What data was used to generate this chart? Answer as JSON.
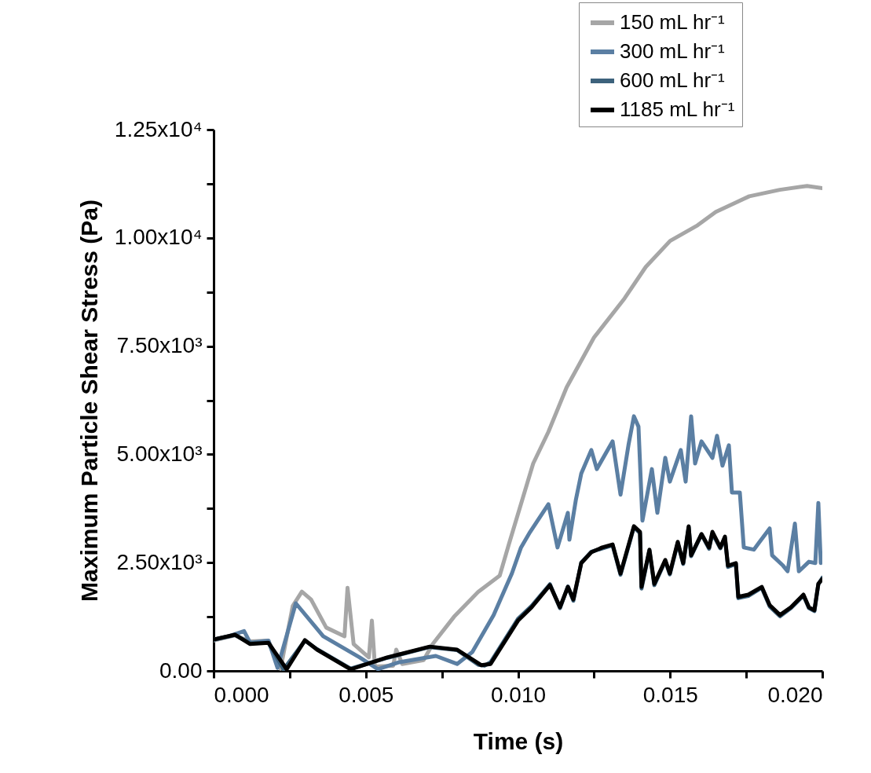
{
  "chart_data": {
    "type": "line",
    "xlabel": "Time (s)",
    "ylabel": "Maximum Particle Shear Stress (Pa)",
    "xlim": [
      0,
      0.02
    ],
    "ylim": [
      0,
      12500
    ],
    "xticks": [
      {
        "value": 0,
        "label": "0.000"
      },
      {
        "value": 0.0025,
        "label": null
      },
      {
        "value": 0.005,
        "label": "0.005"
      },
      {
        "value": 0.0075,
        "label": null
      },
      {
        "value": 0.01,
        "label": "0.010"
      },
      {
        "value": 0.0125,
        "label": null
      },
      {
        "value": 0.015,
        "label": "0.015"
      },
      {
        "value": 0.0175,
        "label": null
      },
      {
        "value": 0.02,
        "label": "0.020"
      }
    ],
    "yticks": [
      {
        "value": 0,
        "label": "0.00"
      },
      {
        "value": 1250,
        "label": null
      },
      {
        "value": 2500,
        "label": "2.50x10³"
      },
      {
        "value": 3750,
        "label": null
      },
      {
        "value": 5000,
        "label": "5.00x10³"
      },
      {
        "value": 6250,
        "label": null
      },
      {
        "value": 7500,
        "label": "7.50x10³"
      },
      {
        "value": 8750,
        "label": null
      },
      {
        "value": 10000,
        "label": "1.00x10⁴"
      },
      {
        "value": 11250,
        "label": null
      },
      {
        "value": 12500,
        "label": "1.25x10⁴"
      }
    ],
    "grid": false,
    "legend": "top right",
    "line_style": "solid",
    "marker": "none",
    "series": [
      {
        "name": "150 mL hr⁻¹",
        "color": "#a6a6a6",
        "x": [
          0,
          0.0007,
          0.0012,
          0.0018,
          0.0022,
          0.0026,
          0.0029,
          0.0032,
          0.0037,
          0.0043,
          0.0044,
          0.0046,
          0.0051,
          0.0052,
          0.0053,
          0.0059,
          0.006,
          0.0062,
          0.0069,
          0.0072,
          0.0079,
          0.0087,
          0.0094,
          0.0097,
          0.0105,
          0.011,
          0.0116,
          0.0125,
          0.0135,
          0.0142,
          0.015,
          0.0159,
          0.0165,
          0.0176,
          0.0186,
          0.0195,
          0.02
        ],
        "values": [
          700,
          820,
          680,
          700,
          50,
          1500,
          1830,
          1650,
          1000,
          800,
          1920,
          620,
          310,
          1160,
          100,
          120,
          490,
          160,
          250,
          620,
          1250,
          1830,
          2200,
          2920,
          4790,
          5520,
          6550,
          7700,
          8600,
          9330,
          9930,
          10290,
          10600,
          10960,
          11110,
          11200,
          11150
        ]
      },
      {
        "name": "300 mL hr⁻¹",
        "color": "#5b7fa3",
        "x": [
          0,
          0.0005,
          0.001,
          0.0012,
          0.0018,
          0.0021,
          0.0027,
          0.0036,
          0.0048,
          0.0054,
          0.0061,
          0.0073,
          0.008,
          0.0085,
          0.0092,
          0.0098,
          0.0101,
          0.0104,
          0.011,
          0.0113,
          0.01164,
          0.01169,
          0.0119,
          0.01208,
          0.01241,
          0.01259,
          0.01311,
          0.01337,
          0.01363,
          0.01381,
          0.01396,
          0.01409,
          0.0144,
          0.01458,
          0.01484,
          0.01499,
          0.01535,
          0.01551,
          0.01569,
          0.01582,
          0.01603,
          0.01639,
          0.01654,
          0.01672,
          0.01693,
          0.01703,
          0.01729,
          0.01742,
          0.01775,
          0.01794,
          0.01827,
          0.01835,
          0.01871,
          0.01886,
          0.0191,
          0.01923,
          0.01956,
          0.01977,
          0.01987,
          0.01995,
          0.02
        ],
        "values": [
          720,
          800,
          920,
          650,
          700,
          70,
          1560,
          800,
          310,
          40,
          200,
          345,
          160,
          435,
          1290,
          2250,
          2850,
          3210,
          3850,
          2850,
          3650,
          3030,
          3940,
          4560,
          5100,
          4660,
          5300,
          4070,
          5210,
          5880,
          5640,
          3470,
          4660,
          3650,
          4920,
          4370,
          5100,
          4370,
          5880,
          4790,
          5300,
          4920,
          5430,
          4740,
          5210,
          4120,
          4120,
          2850,
          2800,
          2980,
          3290,
          2670,
          2430,
          2300,
          3400,
          2300,
          2520,
          2490,
          3880,
          2490,
          2550
        ]
      },
      {
        "name": "600 mL hr⁻¹",
        "color": "#3d627c",
        "x": [
          0,
          0.0007,
          0.0012,
          0.0018,
          0.0023,
          0.003,
          0.0034,
          0.0045,
          0.0057,
          0.0071,
          0.008,
          0.0087,
          0.0089,
          0.0091,
          0.01,
          0.01045,
          0.01105,
          0.01138,
          0.01164,
          0.01182,
          0.01208,
          0.01241,
          0.01277,
          0.01311,
          0.01337,
          0.01381,
          0.01401,
          0.01406,
          0.01432,
          0.01448,
          0.01484,
          0.01499,
          0.01525,
          0.01543,
          0.01561,
          0.01569,
          0.01603,
          0.01628,
          0.01639,
          0.01665,
          0.0168,
          0.0169,
          0.01716,
          0.01724,
          0.01757,
          0.01801,
          0.01827,
          0.01861,
          0.01897,
          0.01938,
          0.01956,
          0.01974,
          0.01987,
          0.02
        ],
        "values": [
          720,
          830,
          640,
          650,
          30,
          700,
          500,
          50,
          300,
          550,
          480,
          140,
          120,
          200,
          1200,
          1500,
          2000,
          1450,
          1950,
          1620,
          2500,
          2750,
          2830,
          2900,
          2220,
          3320,
          3180,
          1900,
          2780,
          1980,
          2540,
          2230,
          2950,
          2470,
          3320,
          2650,
          3150,
          2820,
          3180,
          2830,
          3080,
          2400,
          2470,
          1680,
          1730,
          1920,
          1490,
          1260,
          1450,
          1740,
          1450,
          1380,
          2000,
          2150
        ]
      },
      {
        "name": "1185 mL hr⁻¹",
        "color": "#000000",
        "x": [
          0,
          0.0007,
          0.0012,
          0.0018,
          0.0024,
          0.003,
          0.0034,
          0.0045,
          0.0057,
          0.0071,
          0.008,
          0.0088,
          0.0091,
          0.01,
          0.01045,
          0.01105,
          0.01138,
          0.01164,
          0.01182,
          0.01208,
          0.01241,
          0.01277,
          0.01311,
          0.01337,
          0.01381,
          0.01401,
          0.01406,
          0.01432,
          0.01448,
          0.01484,
          0.01499,
          0.01525,
          0.01543,
          0.01561,
          0.01569,
          0.01603,
          0.01628,
          0.01639,
          0.01665,
          0.0168,
          0.0169,
          0.01716,
          0.01724,
          0.01757,
          0.01801,
          0.01827,
          0.01861,
          0.01897,
          0.01938,
          0.01956,
          0.01974,
          0.01987,
          0.02
        ],
        "values": [
          726,
          835,
          620,
          650,
          36,
          710,
          490,
          36,
          310,
          560,
          490,
          130,
          160,
          1160,
          1470,
          1980,
          1470,
          1940,
          1650,
          2490,
          2740,
          2850,
          2920,
          2250,
          3340,
          3210,
          1940,
          2800,
          2010,
          2560,
          2250,
          2980,
          2490,
          3340,
          2670,
          3160,
          2850,
          3210,
          2850,
          3100,
          2430,
          2490,
          1710,
          1760,
          1940,
          1520,
          1290,
          1470,
          1760,
          1470,
          1400,
          2010,
          2120
        ]
      }
    ]
  }
}
